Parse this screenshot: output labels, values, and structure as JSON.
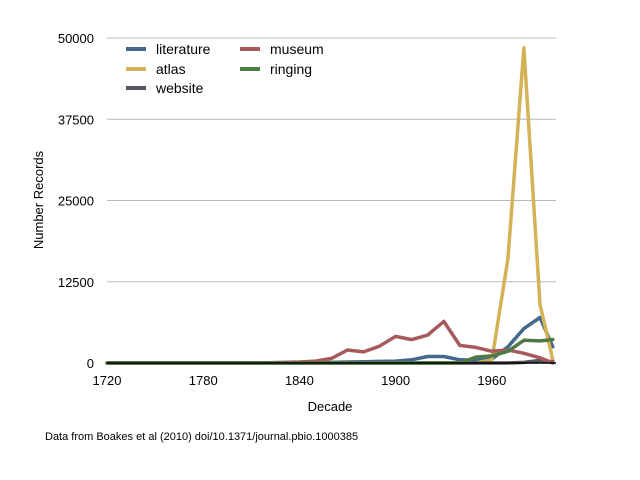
{
  "chart_data": {
    "type": "line",
    "title": "",
    "xlabel": "Decade",
    "ylabel": "Number Records",
    "xlim": [
      1720,
      2000
    ],
    "ylim": [
      0,
      50000
    ],
    "x_ticks": [
      1720,
      1780,
      1840,
      1900,
      1960
    ],
    "x_tick_labels": [
      "1720",
      "1780",
      "1840",
      "1900",
      "1960"
    ],
    "y_ticks": [
      0,
      12500,
      25000,
      37500,
      50000
    ],
    "y_tick_labels": [
      "0",
      "12500",
      "25000",
      "37500",
      "50000"
    ],
    "grid": "horizontal",
    "legend_position": "top-left",
    "x": [
      1720,
      1730,
      1740,
      1750,
      1760,
      1770,
      1780,
      1790,
      1800,
      1810,
      1820,
      1830,
      1840,
      1850,
      1860,
      1870,
      1880,
      1890,
      1900,
      1910,
      1920,
      1930,
      1940,
      1950,
      1960,
      1970,
      1980,
      1990,
      1998
    ],
    "series": [
      {
        "name": "literature",
        "color": "#44688c",
        "values": [
          0,
          0,
          0,
          0,
          0,
          0,
          0,
          0,
          0,
          0,
          0,
          0,
          0,
          50,
          100,
          150,
          200,
          250,
          300,
          500,
          1000,
          1000,
          500,
          400,
          600,
          2500,
          5300,
          7000,
          2500
        ]
      },
      {
        "name": "atlas",
        "color": "#d4b255",
        "values": [
          0,
          0,
          0,
          0,
          0,
          0,
          0,
          0,
          0,
          0,
          0,
          0,
          0,
          0,
          0,
          0,
          0,
          0,
          0,
          0,
          0,
          0,
          0,
          0,
          500,
          16000,
          48500,
          9000,
          500
        ]
      },
      {
        "name": "website",
        "color": "#555560",
        "values": [
          0,
          0,
          0,
          0,
          0,
          0,
          0,
          0,
          0,
          0,
          0,
          0,
          0,
          0,
          0,
          0,
          0,
          0,
          0,
          0,
          0,
          0,
          0,
          0,
          0,
          0,
          100,
          400,
          200
        ]
      },
      {
        "name": "museum",
        "color": "#a65a5c",
        "values": [
          0,
          0,
          0,
          0,
          0,
          0,
          0,
          0,
          0,
          0,
          50,
          100,
          150,
          300,
          700,
          2000,
          1700,
          2600,
          4100,
          3600,
          4300,
          6400,
          2700,
          2400,
          1800,
          2000,
          1500,
          800,
          0
        ]
      },
      {
        "name": "ringing",
        "color": "#4d7a45",
        "values": [
          0,
          0,
          0,
          0,
          0,
          0,
          0,
          0,
          0,
          0,
          0,
          0,
          0,
          0,
          0,
          0,
          0,
          0,
          0,
          0,
          0,
          0,
          0,
          900,
          1100,
          1800,
          3500,
          3400,
          3600
        ]
      }
    ]
  },
  "caption": "Data from Boakes et al (2010) doi/10.1371/journal.pbio.1000385"
}
